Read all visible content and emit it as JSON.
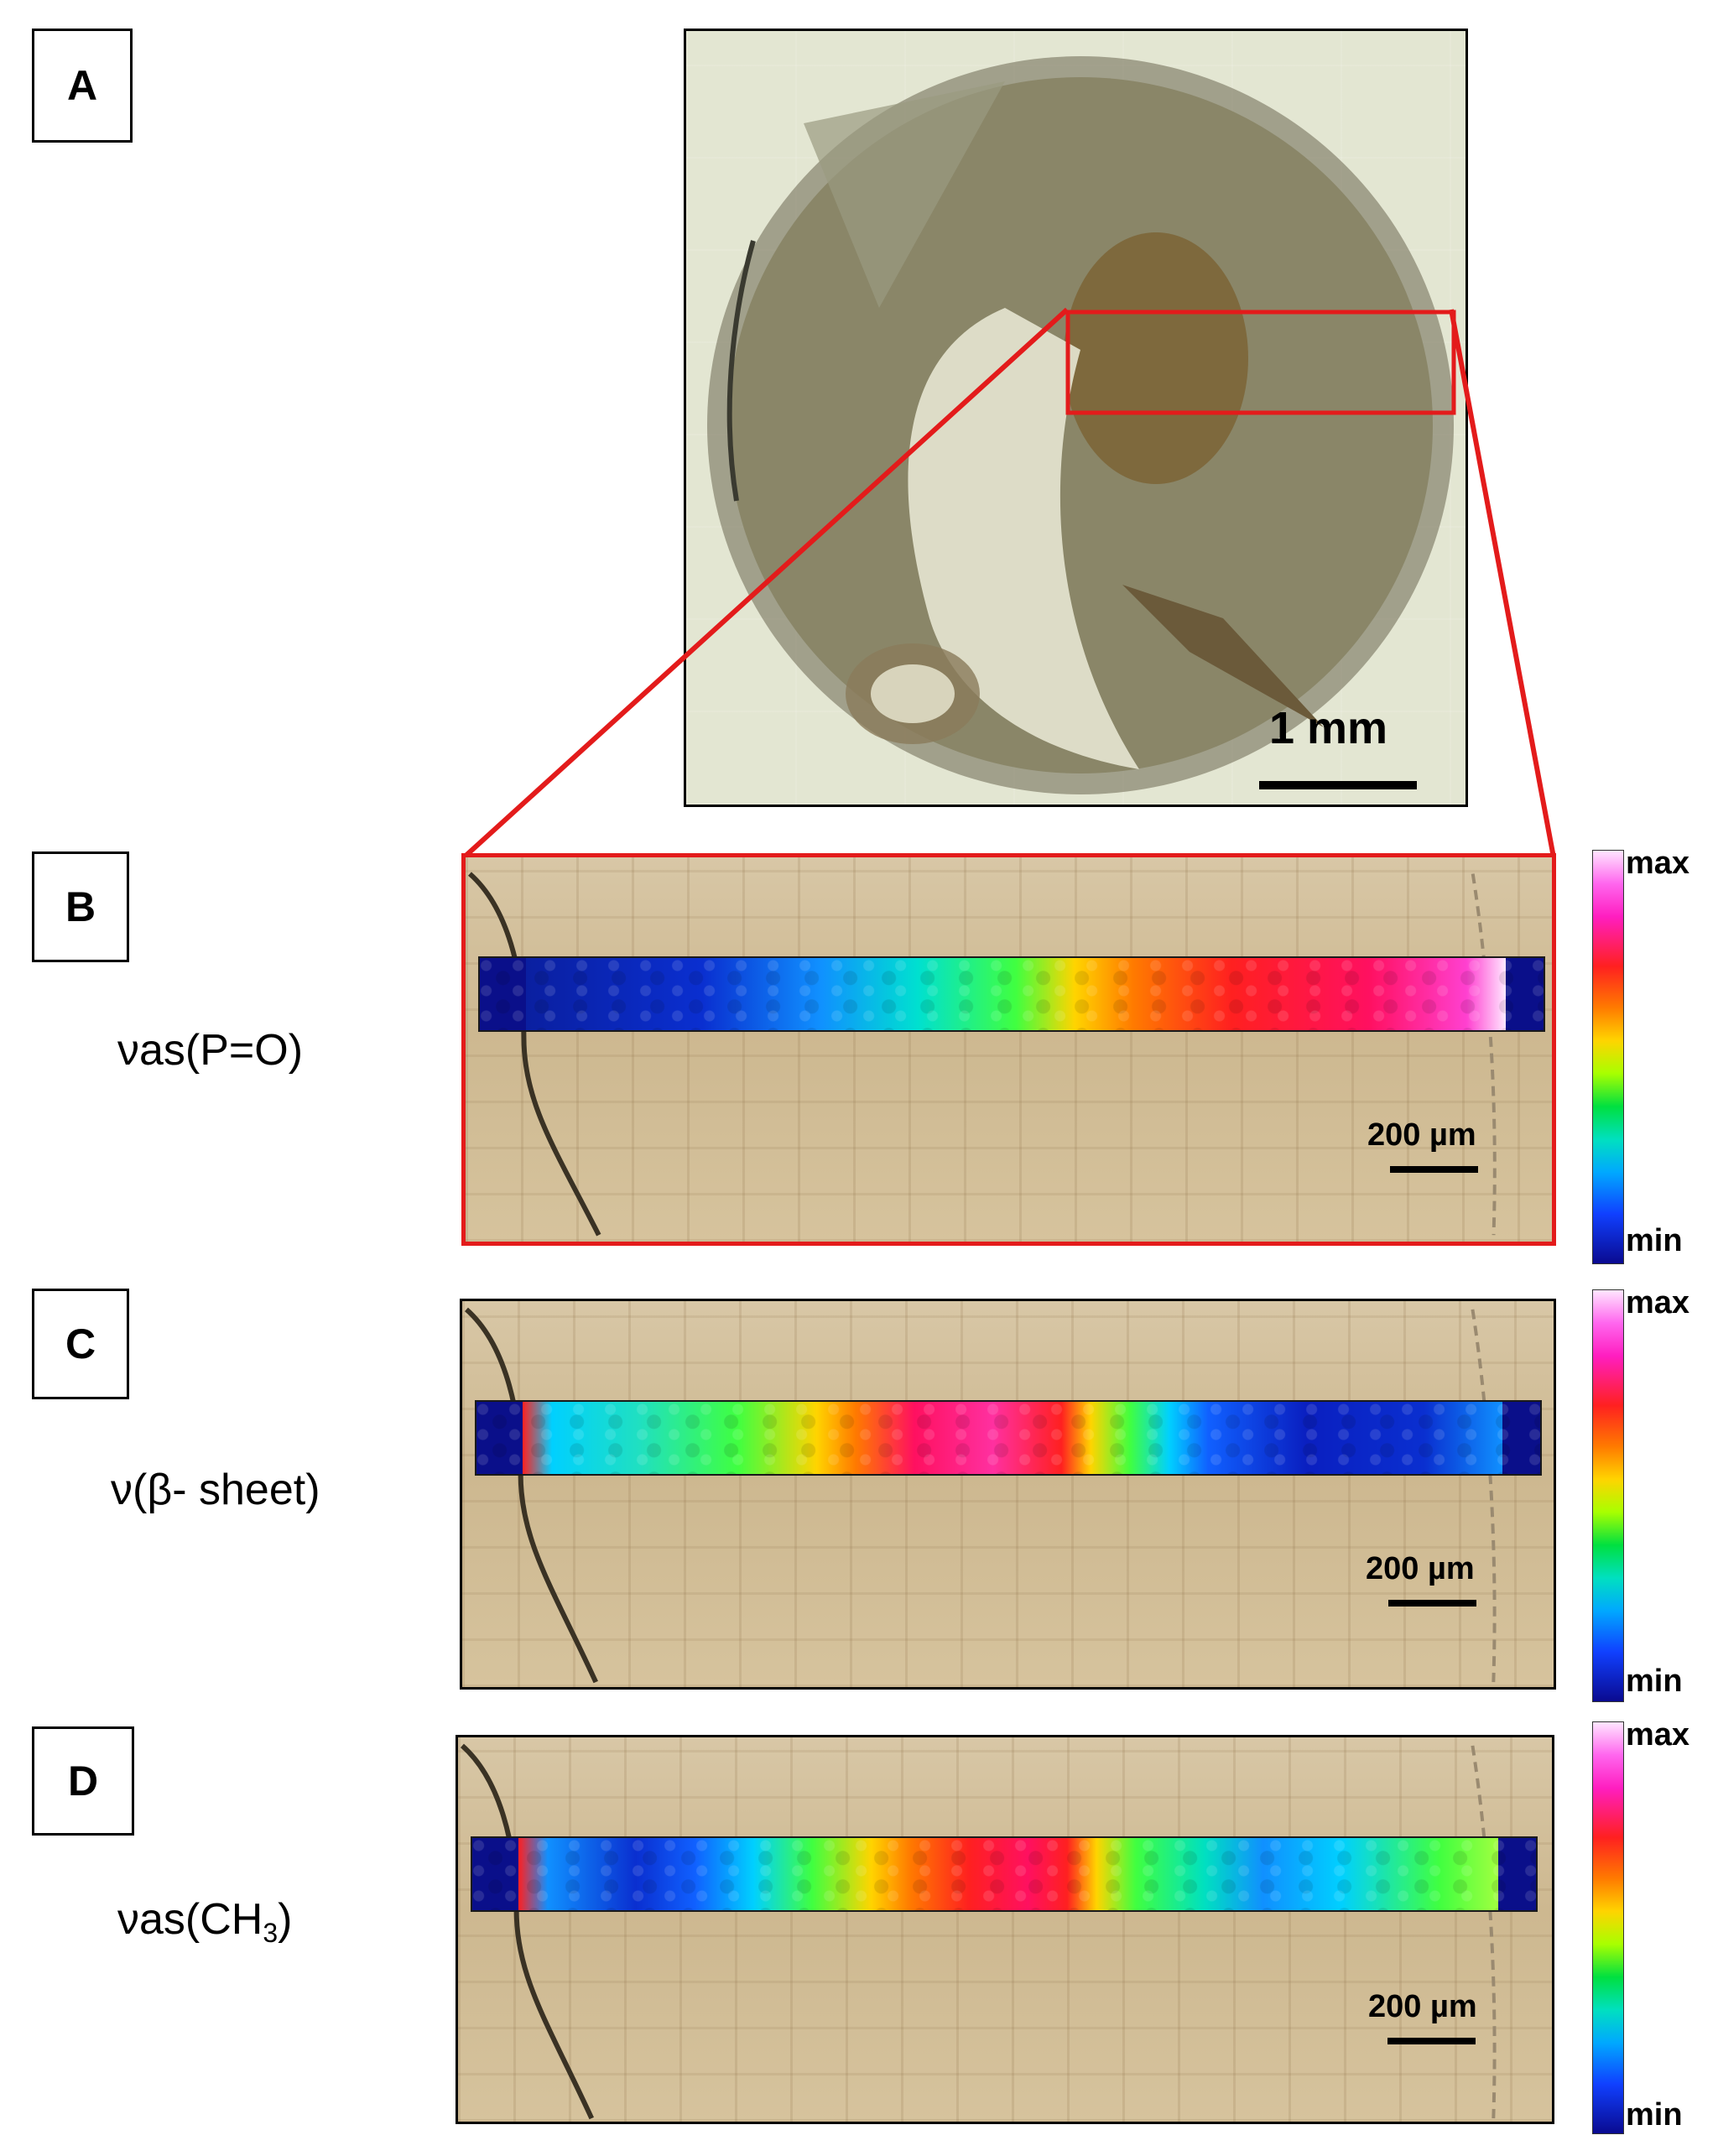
{
  "panels": {
    "a": {
      "letter": "A",
      "scale_label": "1 mm"
    },
    "b": {
      "letter": "B",
      "mode": "νas(P=O)",
      "scale_label": "200 µm"
    },
    "c": {
      "letter": "C",
      "mode": "ν(β- sheet)",
      "scale_label": "200 µm"
    },
    "d": {
      "letter": "D",
      "mode_main": "νas(CH",
      "mode_sub": "3",
      "mode_close": ")",
      "scale_label": "200 µm"
    }
  },
  "colorbar": {
    "max_label": "max",
    "min_label": "min"
  },
  "colors": {
    "highlight": "#e31b1b",
    "map_background": "#0a0f8a"
  }
}
